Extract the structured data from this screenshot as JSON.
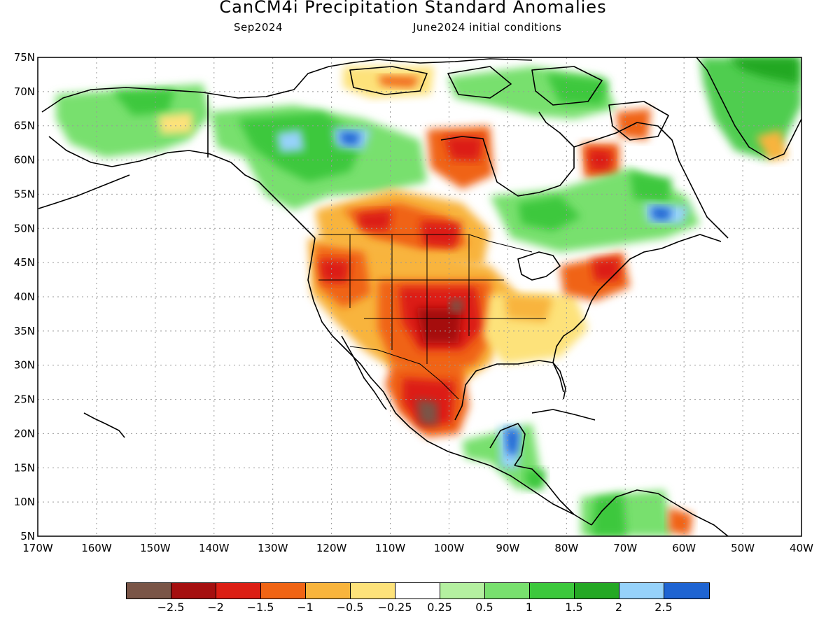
{
  "title": "CanCM4i Precipitation Standard Anomalies",
  "subtitle_left": "Sep2024",
  "subtitle_right": "June2024 initial conditions",
  "lat_labels": [
    "75N",
    "70N",
    "65N",
    "60N",
    "55N",
    "50N",
    "45N",
    "40N",
    "35N",
    "30N",
    "25N",
    "20N",
    "15N",
    "10N",
    "5N"
  ],
  "lon_labels": [
    "170W",
    "160W",
    "150W",
    "140W",
    "130W",
    "120W",
    "110W",
    "100W",
    "90W",
    "80W",
    "70W",
    "60W",
    "50W",
    "40W"
  ],
  "legend": {
    "colors": [
      "#7a5547",
      "#a50f0f",
      "#dc1e14",
      "#f06414",
      "#f8b43c",
      "#fde27a",
      "#ffffff",
      "#b4f0a0",
      "#78e06e",
      "#3cc83c",
      "#24a824",
      "#96d2fa",
      "#1e64d2"
    ],
    "labels": [
      "−2.5",
      "−2",
      "−1.5",
      "−1",
      "−0.5",
      "−0.25",
      "0.25",
      "0.5",
      "1",
      "1.5",
      "2",
      "2.5"
    ]
  },
  "colors": {
    "land_outline": "#000000",
    "grid": "#999999",
    "frame": "#000000"
  }
}
